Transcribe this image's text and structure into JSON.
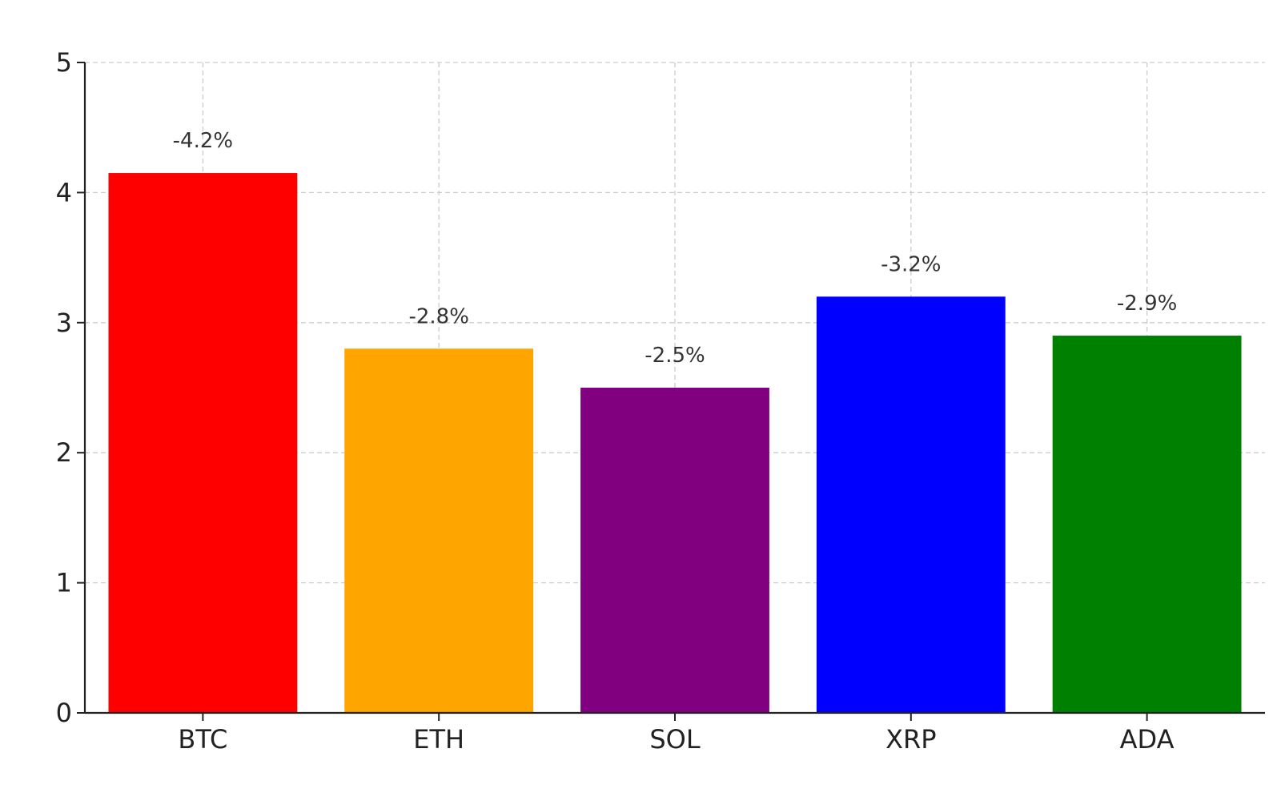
{
  "chart_data": {
    "type": "bar",
    "title": "",
    "xlabel": "",
    "ylabel": "",
    "categories": [
      "BTC",
      "ETH",
      "SOL",
      "XRP",
      "ADA"
    ],
    "values": [
      4.15,
      2.8,
      2.5,
      3.2,
      2.9
    ],
    "data_labels": [
      "-4.2%",
      "-2.8%",
      "-2.5%",
      "-3.2%",
      "-2.9%"
    ],
    "colors": [
      "#ff0000",
      "#ffa500",
      "#800080",
      "#0000ff",
      "#008000"
    ],
    "ylim": [
      0,
      5
    ],
    "yticks": [
      0,
      1,
      2,
      3,
      4,
      5
    ],
    "grid": true
  }
}
